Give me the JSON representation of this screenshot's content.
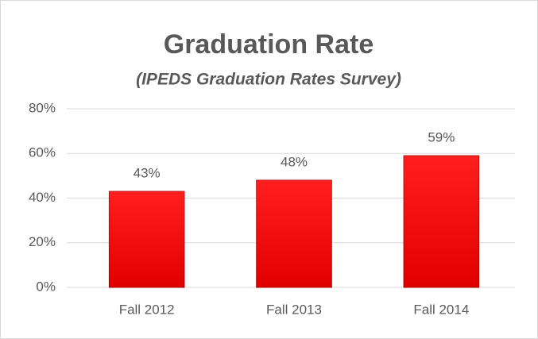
{
  "chart_data": {
    "type": "bar",
    "title": "Graduation Rate",
    "subtitle": "(IPEDS Graduation Rates Survey)",
    "categories": [
      "Fall 2012",
      "Fall 2013",
      "Fall 2014"
    ],
    "values": [
      43,
      48,
      59
    ],
    "value_labels": [
      "43%",
      "48%",
      "59%"
    ],
    "color": "#ff0000",
    "ylim": [
      0,
      80
    ],
    "yticks": [
      {
        "value": 0,
        "label": "0%"
      },
      {
        "value": 20,
        "label": "20%"
      },
      {
        "value": 40,
        "label": "40%"
      },
      {
        "value": 60,
        "label": "60%"
      },
      {
        "value": 80,
        "label": "80%"
      }
    ],
    "grid": true
  }
}
